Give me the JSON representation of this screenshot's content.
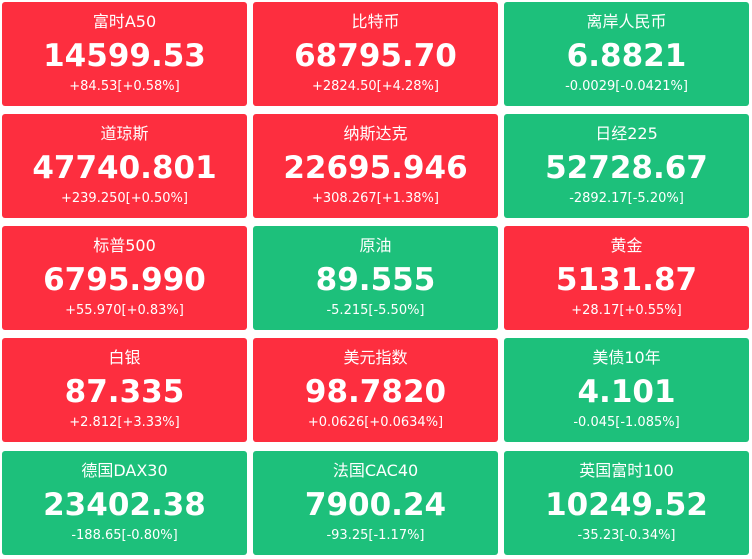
{
  "colors": {
    "up": "#fd2e3f",
    "down": "#1dc07b",
    "text": "#ffffff"
  },
  "tiles": [
    {
      "name": "富时A50",
      "price": "14599.53",
      "change": "+84.53[+0.58%]",
      "direction": "up"
    },
    {
      "name": "比特币",
      "price": "68795.70",
      "change": "+2824.50[+4.28%]",
      "direction": "up"
    },
    {
      "name": "离岸人民币",
      "price": "6.8821",
      "change": "-0.0029[-0.0421%]",
      "direction": "down"
    },
    {
      "name": "道琼斯",
      "price": "47740.801",
      "change": "+239.250[+0.50%]",
      "direction": "up"
    },
    {
      "name": "纳斯达克",
      "price": "22695.946",
      "change": "+308.267[+1.38%]",
      "direction": "up"
    },
    {
      "name": "日经225",
      "price": "52728.67",
      "change": "-2892.17[-5.20%]",
      "direction": "down"
    },
    {
      "name": "标普500",
      "price": "6795.990",
      "change": "+55.970[+0.83%]",
      "direction": "up"
    },
    {
      "name": "原油",
      "price": "89.555",
      "change": "-5.215[-5.50%]",
      "direction": "down"
    },
    {
      "name": "黄金",
      "price": "5131.87",
      "change": "+28.17[+0.55%]",
      "direction": "up"
    },
    {
      "name": "白银",
      "price": "87.335",
      "change": "+2.812[+3.33%]",
      "direction": "up"
    },
    {
      "name": "美元指数",
      "price": "98.7820",
      "change": "+0.0626[+0.0634%]",
      "direction": "up"
    },
    {
      "name": "美债10年",
      "price": "4.101",
      "change": "-0.045[-1.085%]",
      "direction": "down"
    },
    {
      "name": "德国DAX30",
      "price": "23402.38",
      "change": "-188.65[-0.80%]",
      "direction": "down"
    },
    {
      "name": "法国CAC40",
      "price": "7900.24",
      "change": "-93.25[-1.17%]",
      "direction": "down"
    },
    {
      "name": "英国富时100",
      "price": "10249.52",
      "change": "-35.23[-0.34%]",
      "direction": "down"
    }
  ]
}
